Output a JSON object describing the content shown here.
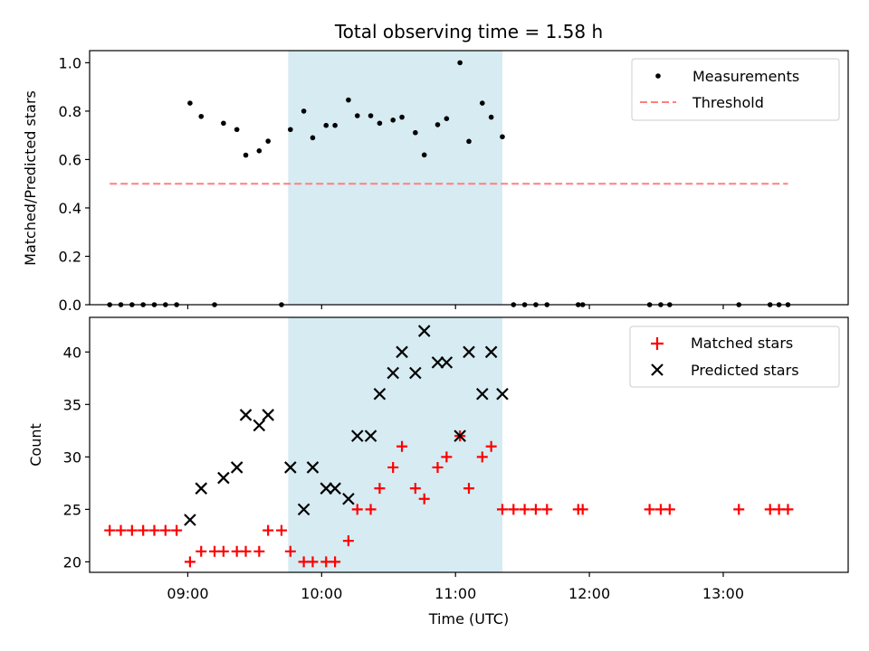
{
  "chart_data": [
    {
      "type": "scatter",
      "title": "Total observing time = 1.58 h",
      "ylabel": "Matched/Predicted stars",
      "xlabel": "",
      "xlim": [
        "08:16",
        "13:56"
      ],
      "ylim": [
        0,
        1.05
      ],
      "yticks": [
        "0.0",
        "0.2",
        "0.4",
        "0.6",
        "0.8",
        "1.0"
      ],
      "xticks": [
        "09:00",
        "10:00",
        "11:00",
        "12:00",
        "13:00"
      ],
      "shaded_range": [
        "09:45",
        "11:21"
      ],
      "shaded_color": "#add8e6",
      "legend_position": "top-right",
      "series": [
        {
          "name": "Measurements",
          "color": "#000000",
          "marker": "dot",
          "points": [
            [
              "08:25",
              0.0
            ],
            [
              "08:30",
              0.0
            ],
            [
              "08:35",
              0.0
            ],
            [
              "08:40",
              0.0
            ],
            [
              "08:45",
              0.0
            ],
            [
              "08:50",
              0.0
            ],
            [
              "08:55",
              0.0
            ],
            [
              "09:01",
              0.833
            ],
            [
              "09:06",
              0.778
            ],
            [
              "09:12",
              0.0
            ],
            [
              "09:16",
              0.75
            ],
            [
              "09:22",
              0.724
            ],
            [
              "09:26",
              0.618
            ],
            [
              "09:32",
              0.636
            ],
            [
              "09:36",
              0.676
            ],
            [
              "09:42",
              0.0
            ],
            [
              "09:46",
              0.724
            ],
            [
              "09:52",
              0.8
            ],
            [
              "09:56",
              0.69
            ],
            [
              "10:02",
              0.741
            ],
            [
              "10:06",
              0.741
            ],
            [
              "10:12",
              0.846
            ],
            [
              "10:16",
              0.781
            ],
            [
              "10:22",
              0.781
            ],
            [
              "10:26",
              0.75
            ],
            [
              "10:32",
              0.763
            ],
            [
              "10:36",
              0.775
            ],
            [
              "10:42",
              0.711
            ],
            [
              "10:46",
              0.619
            ],
            [
              "10:52",
              0.744
            ],
            [
              "10:56",
              0.769
            ],
            [
              "11:02",
              1.0
            ],
            [
              "11:06",
              0.675
            ],
            [
              "11:12",
              0.833
            ],
            [
              "11:16",
              0.775
            ],
            [
              "11:21",
              0.694
            ],
            [
              "11:26",
              0.0
            ],
            [
              "11:31",
              0.0
            ],
            [
              "11:36",
              0.0
            ],
            [
              "11:41",
              0.0
            ],
            [
              "11:55",
              0.0
            ],
            [
              "11:57",
              0.0
            ],
            [
              "12:27",
              0.0
            ],
            [
              "12:32",
              0.0
            ],
            [
              "12:36",
              0.0
            ],
            [
              "13:07",
              0.0
            ],
            [
              "13:21",
              0.0
            ],
            [
              "13:25",
              0.0
            ],
            [
              "13:29",
              0.0
            ]
          ]
        },
        {
          "name": "Threshold",
          "color": "#ff7f7f",
          "marker": "dashed-line",
          "points": [
            [
              "08:25",
              0.5
            ],
            [
              "13:29",
              0.5
            ]
          ]
        }
      ]
    },
    {
      "type": "scatter",
      "title": "",
      "ylabel": "Count",
      "xlabel": "Time (UTC)",
      "xlim": [
        "08:16",
        "13:56"
      ],
      "ylim": [
        19,
        43.3
      ],
      "yticks": [
        "20",
        "25",
        "30",
        "35",
        "40"
      ],
      "xticks": [
        "09:00",
        "10:00",
        "11:00",
        "12:00",
        "13:00"
      ],
      "shaded_range": [
        "09:45",
        "11:21"
      ],
      "shaded_color": "#add8e6",
      "legend_position": "top-right",
      "series": [
        {
          "name": "Matched stars",
          "color": "#ff0000",
          "marker": "plus",
          "points": [
            [
              "08:25",
              23
            ],
            [
              "08:30",
              23
            ],
            [
              "08:35",
              23
            ],
            [
              "08:40",
              23
            ],
            [
              "08:45",
              23
            ],
            [
              "08:50",
              23
            ],
            [
              "08:55",
              23
            ],
            [
              "09:01",
              20
            ],
            [
              "09:06",
              21
            ],
            [
              "09:12",
              21
            ],
            [
              "09:16",
              21
            ],
            [
              "09:22",
              21
            ],
            [
              "09:26",
              21
            ],
            [
              "09:32",
              21
            ],
            [
              "09:36",
              23
            ],
            [
              "09:42",
              23
            ],
            [
              "09:46",
              21
            ],
            [
              "09:52",
              20
            ],
            [
              "09:56",
              20
            ],
            [
              "10:02",
              20
            ],
            [
              "10:06",
              20
            ],
            [
              "10:12",
              22
            ],
            [
              "10:16",
              25
            ],
            [
              "10:22",
              25
            ],
            [
              "10:26",
              27
            ],
            [
              "10:32",
              29
            ],
            [
              "10:36",
              31
            ],
            [
              "10:42",
              27
            ],
            [
              "10:46",
              26
            ],
            [
              "10:52",
              29
            ],
            [
              "10:56",
              30
            ],
            [
              "11:02",
              32
            ],
            [
              "11:06",
              27
            ],
            [
              "11:12",
              30
            ],
            [
              "11:16",
              31
            ],
            [
              "11:21",
              25
            ],
            [
              "11:26",
              25
            ],
            [
              "11:31",
              25
            ],
            [
              "11:36",
              25
            ],
            [
              "11:41",
              25
            ],
            [
              "11:55",
              25
            ],
            [
              "11:57",
              25
            ],
            [
              "12:27",
              25
            ],
            [
              "12:32",
              25
            ],
            [
              "12:36",
              25
            ],
            [
              "13:07",
              25
            ],
            [
              "13:21",
              25
            ],
            [
              "13:25",
              25
            ],
            [
              "13:29",
              25
            ]
          ]
        },
        {
          "name": "Predicted stars",
          "color": "#000000",
          "marker": "x",
          "points": [
            [
              "09:01",
              24
            ],
            [
              "09:06",
              27
            ],
            [
              "09:16",
              28
            ],
            [
              "09:22",
              29
            ],
            [
              "09:26",
              34
            ],
            [
              "09:32",
              33
            ],
            [
              "09:36",
              34
            ],
            [
              "09:46",
              29
            ],
            [
              "09:52",
              25
            ],
            [
              "09:56",
              29
            ],
            [
              "10:02",
              27
            ],
            [
              "10:06",
              27
            ],
            [
              "10:12",
              26
            ],
            [
              "10:16",
              32
            ],
            [
              "10:22",
              32
            ],
            [
              "10:26",
              36
            ],
            [
              "10:32",
              38
            ],
            [
              "10:36",
              40
            ],
            [
              "10:42",
              38
            ],
            [
              "10:46",
              42
            ],
            [
              "10:52",
              39
            ],
            [
              "10:56",
              39
            ],
            [
              "11:02",
              32
            ],
            [
              "11:06",
              40
            ],
            [
              "11:12",
              36
            ],
            [
              "11:16",
              40
            ],
            [
              "11:21",
              36
            ]
          ]
        }
      ]
    }
  ]
}
